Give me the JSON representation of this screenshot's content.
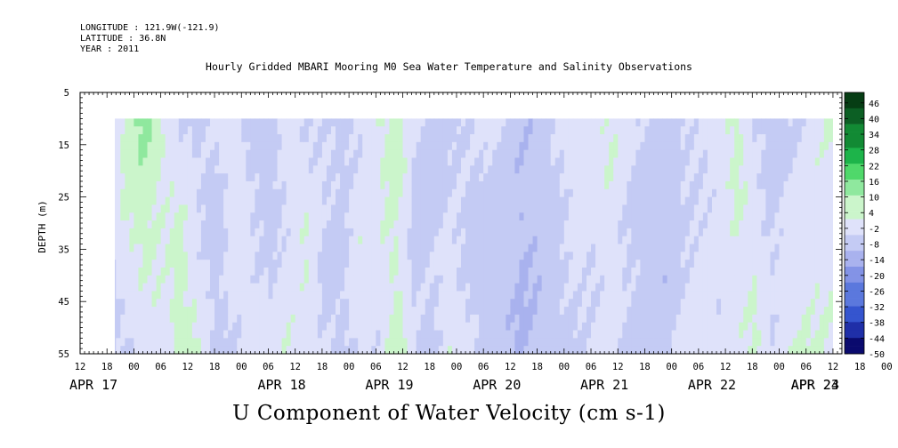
{
  "header": {
    "longitude": "LONGITUDE : 121.9W(-121.9)",
    "latitude": "LATITUDE : 36.8N",
    "year": "YEAR : 2011"
  },
  "chart_data": {
    "type": "heatmap",
    "title": "Hourly Gridded MBARI Mooring M0 Sea Water Temperature and Salinity Observations",
    "xlabel": "U Component of Water Velocity (cm s-1)",
    "ylabel": "DEPTH (m)",
    "ylim": [
      5,
      55
    ],
    "y_inverted": true,
    "y_ticks": [
      5,
      15,
      25,
      35,
      45,
      55
    ],
    "x_start": "2011-04-17 12:00",
    "x_end": "2011-04-24 14:00",
    "data_start": "2011-04-17 18:00",
    "data_depth_range": [
      10,
      55
    ],
    "x_hour_ticks": [
      "12",
      "18",
      "00",
      "06",
      "12",
      "18",
      "00",
      "06",
      "12",
      "18",
      "00",
      "06",
      "12",
      "18",
      "00",
      "06",
      "12",
      "18",
      "00",
      "06",
      "12",
      "18",
      "00",
      "06",
      "12",
      "18",
      "00",
      "06",
      "12",
      "18",
      "00",
      "06",
      "12"
    ],
    "x_date_labels": [
      "APR 17",
      "APR 18",
      "APR 19",
      "APR 20",
      "APR 21",
      "APR 22",
      "APR 23",
      "APR 24"
    ],
    "colorbar_ticks": [
      "46",
      "40",
      "34",
      "28",
      "22",
      "16",
      "10",
      "4",
      "-2",
      "-8",
      "-14",
      "-20",
      "-26",
      "-32",
      "-38",
      "-44",
      "-50"
    ],
    "colorbar_range": [
      -50,
      50
    ],
    "colorbar_step": 3,
    "palette": [
      "#0a0a6e",
      "#1f2fa8",
      "#3555cf",
      "#5b78dd",
      "#8393e6",
      "#a9b2ee",
      "#c4cbf4",
      "#dfe2fa",
      "#cbf5cb",
      "#8fe89e",
      "#4fd86a",
      "#1db44a",
      "#128a34",
      "#0c5f24",
      "#063d14"
    ],
    "columns": [
      {
        "t": "04-17 18",
        "top": -3,
        "mid": -4,
        "bot": -6
      },
      {
        "t": "04-17 22",
        "top": 7,
        "mid": 4,
        "bot": -5
      },
      {
        "t": "04-18 02",
        "top": 12,
        "mid": 6,
        "bot": -2
      },
      {
        "t": "04-18 06",
        "top": 4,
        "mid": 2,
        "bot": 1
      },
      {
        "t": "04-18 10",
        "top": -3,
        "mid": 5,
        "bot": 8
      },
      {
        "t": "04-18 14",
        "top": -6,
        "mid": -2,
        "bot": 3
      },
      {
        "t": "04-18 18",
        "top": -2,
        "mid": -7,
        "bot": -5
      },
      {
        "t": "04-18 22",
        "top": 2,
        "mid": 1,
        "bot": -3
      },
      {
        "t": "04-19 02",
        "top": -6,
        "mid": -3,
        "bot": 2
      },
      {
        "t": "04-19 06",
        "top": -8,
        "mid": -5,
        "bot": -1
      },
      {
        "t": "04-19 10",
        "top": 1,
        "mid": -2,
        "bot": 4
      },
      {
        "t": "04-19 14",
        "top": -4,
        "mid": 3,
        "bot": 1
      },
      {
        "t": "04-19 18",
        "top": -2,
        "mid": -5,
        "bot": -3
      },
      {
        "t": "04-19 22",
        "top": -7,
        "mid": -4,
        "bot": -6
      },
      {
        "t": "04-20 02",
        "top": -4,
        "mid": 2,
        "bot": -2
      },
      {
        "t": "04-20 06",
        "top": 3,
        "mid": 1,
        "bot": -2
      },
      {
        "t": "04-20 10",
        "top": 8,
        "mid": 4,
        "bot": 7
      },
      {
        "t": "04-20 14",
        "top": -3,
        "mid": -6,
        "bot": -2
      },
      {
        "t": "04-20 18",
        "top": -6,
        "mid": -4,
        "bot": -5
      },
      {
        "t": "04-20 22",
        "top": -4,
        "mid": -3,
        "bot": 3
      },
      {
        "t": "04-21 02",
        "top": -3,
        "mid": -5,
        "bot": -2
      },
      {
        "t": "04-21 06",
        "top": -2,
        "mid": -8,
        "bot": -6
      },
      {
        "t": "04-21 10",
        "top": -4,
        "mid": -6,
        "bot": -8
      },
      {
        "t": "04-21 14",
        "top": -9,
        "mid": -10,
        "bot": -11
      },
      {
        "t": "04-21 18",
        "top": -7,
        "mid": -8,
        "bot": -9
      },
      {
        "t": "04-21 22",
        "top": -3,
        "mid": -5,
        "bot": -6
      },
      {
        "t": "04-22 02",
        "top": 3,
        "mid": -2,
        "bot": -4
      },
      {
        "t": "04-22 06",
        "top": 2,
        "mid": -3,
        "bot": -2
      },
      {
        "t": "04-22 10",
        "top": 4,
        "mid": 1,
        "bot": -3
      },
      {
        "t": "04-22 14",
        "top": -2,
        "mid": -4,
        "bot": -5
      },
      {
        "t": "04-22 18",
        "top": -4,
        "mid": -7,
        "bot": -5
      },
      {
        "t": "04-22 22",
        "top": -8,
        "mid": -9,
        "bot": -6
      },
      {
        "t": "04-23 02",
        "top": -5,
        "mid": -4,
        "bot": -2
      },
      {
        "t": "04-23 06",
        "top": -3,
        "mid": -2,
        "bot": 2
      },
      {
        "t": "04-23 10",
        "top": 2,
        "mid": -3,
        "bot": -1
      },
      {
        "t": "04-23 14",
        "top": 6,
        "mid": 3,
        "bot": 1
      },
      {
        "t": "04-23 18",
        "top": -5,
        "mid": 2,
        "bot": 4
      },
      {
        "t": "04-23 22",
        "top": -7,
        "mid": -4,
        "bot": -3
      },
      {
        "t": "04-24 02",
        "top": -4,
        "mid": -2,
        "bot": 5
      },
      {
        "t": "04-24 06",
        "top": -2,
        "mid": 1,
        "bot": 4
      },
      {
        "t": "04-24 10",
        "top": 3,
        "mid": 2,
        "bot": 3
      },
      {
        "t": "04-24 14",
        "top": 2,
        "mid": 1,
        "bot": 2
      }
    ]
  }
}
